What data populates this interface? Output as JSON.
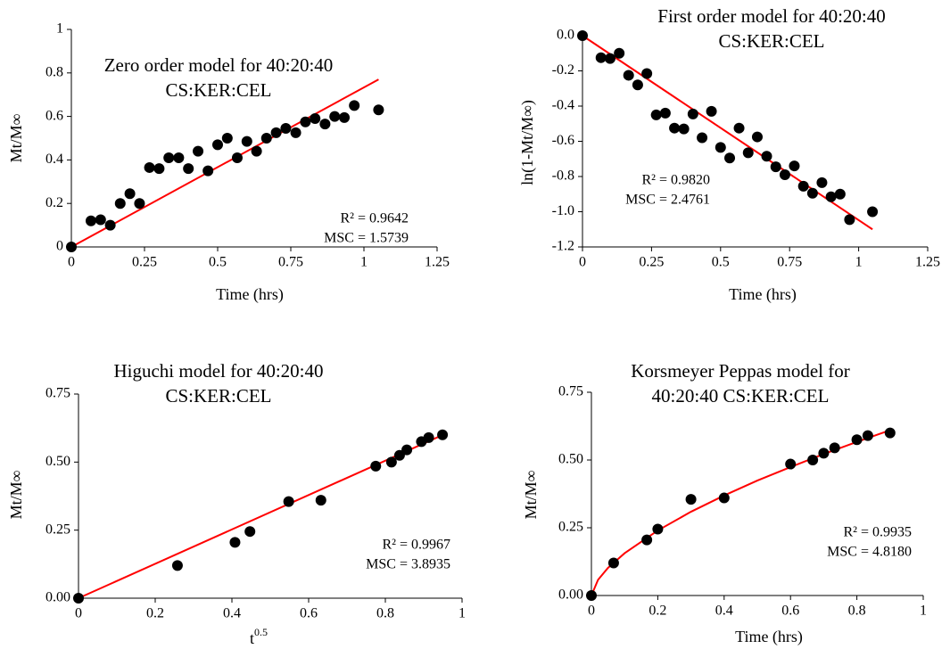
{
  "chart_data": [
    {
      "type": "scatter",
      "title_lines": [
        "Zero order model for 40:20:40",
        "CS:KER:CEL"
      ],
      "x_label": "Time (hrs)",
      "y_label": "Mt/M∞",
      "annotations": [
        "R² = 0.9642",
        "MSC = 1.5739"
      ],
      "xlim": [
        0,
        1.25
      ],
      "xticks": [
        0,
        0.25,
        0.5,
        0.75,
        1,
        1.25
      ],
      "ylim": [
        0,
        1
      ],
      "yticks": [
        0,
        0.2,
        0.4,
        0.6,
        0.8,
        1
      ],
      "x": [
        0,
        0.067,
        0.1,
        0.133,
        0.167,
        0.2,
        0.233,
        0.267,
        0.3,
        0.333,
        0.367,
        0.4,
        0.433,
        0.467,
        0.5,
        0.533,
        0.567,
        0.6,
        0.633,
        0.667,
        0.7,
        0.733,
        0.767,
        0.8,
        0.833,
        0.867,
        0.9,
        0.933,
        0.967,
        1.05
      ],
      "series": [
        {
          "color": "#000000",
          "values": [
            0,
            0.12,
            0.125,
            0.1,
            0.2,
            0.245,
            0.2,
            0.365,
            0.36,
            0.41,
            0.41,
            0.36,
            0.44,
            0.35,
            0.47,
            0.5,
            0.41,
            0.485,
            0.44,
            0.5,
            0.525,
            0.545,
            0.525,
            0.575,
            0.59,
            0.565,
            0.6,
            0.595,
            0.65,
            0.63
          ]
        }
      ],
      "fit": {
        "color": "#ff0000",
        "x": [
          0,
          1.05
        ],
        "values": [
          0,
          0.77
        ]
      }
    },
    {
      "type": "scatter",
      "title_lines": [
        "First order model for 40:20:40",
        "CS:KER:CEL"
      ],
      "x_label": "Time (hrs)",
      "y_label": "ln(1-Mt/M∞)",
      "annotations": [
        "R² = 0.9820",
        "MSC = 2.4761"
      ],
      "xlim": [
        0,
        1.25
      ],
      "xticks": [
        0,
        0.25,
        0.5,
        0.75,
        1,
        1.25
      ],
      "ylim": [
        -1.2,
        0
      ],
      "yticks": [
        {
          "value": 0,
          "label": "0.0"
        },
        -0.2,
        -0.4,
        -0.6,
        -0.8,
        {
          "value": -1,
          "label": "-1.0"
        },
        -1.2
      ],
      "x": [
        0,
        0.067,
        0.1,
        0.133,
        0.167,
        0.2,
        0.233,
        0.267,
        0.3,
        0.333,
        0.367,
        0.4,
        0.433,
        0.467,
        0.5,
        0.533,
        0.567,
        0.6,
        0.633,
        0.667,
        0.7,
        0.733,
        0.767,
        0.8,
        0.833,
        0.867,
        0.9,
        0.933,
        0.967,
        1.05
      ],
      "series": [
        {
          "color": "#000000",
          "values": [
            0,
            -0.125,
            -0.13,
            -0.1,
            -0.225,
            -0.28,
            -0.215,
            -0.45,
            -0.44,
            -0.525,
            -0.53,
            -0.445,
            -0.58,
            -0.43,
            -0.635,
            -0.695,
            -0.525,
            -0.665,
            -0.575,
            -0.685,
            -0.745,
            -0.79,
            -0.74,
            -0.855,
            -0.895,
            -0.835,
            -0.915,
            -0.9,
            -1.045,
            -1.0
          ]
        }
      ],
      "fit": {
        "color": "#ff0000",
        "x": [
          0,
          1.05
        ],
        "values": [
          0,
          -1.1
        ]
      }
    },
    {
      "type": "scatter",
      "title_lines": [
        "Higuchi model for 40:20:40",
        "CS:KER:CEL"
      ],
      "x_label": {
        "base": "t",
        "sup": "0.5"
      },
      "y_label": "Mt/M∞",
      "annotations": [
        "R² = 0.9967",
        "MSC = 3.8935"
      ],
      "xlim": [
        0,
        1
      ],
      "xticks": [
        0,
        0.2,
        0.4,
        0.6,
        0.8,
        1
      ],
      "ylim": [
        0,
        0.75
      ],
      "yticks": [
        {
          "value": 0,
          "label": "0.00"
        },
        0.25,
        {
          "value": 0.5,
          "label": "0.50"
        },
        0.75
      ],
      "x": [
        0,
        0.258,
        0.408,
        0.447,
        0.548,
        0.632,
        0.775,
        0.816,
        0.837,
        0.856,
        0.894,
        0.913,
        0.949
      ],
      "series": [
        {
          "color": "#000000",
          "values": [
            0,
            0.12,
            0.205,
            0.245,
            0.355,
            0.36,
            0.485,
            0.5,
            0.525,
            0.545,
            0.575,
            0.59,
            0.6
          ]
        }
      ],
      "fit": {
        "color": "#ff0000",
        "x": [
          0,
          0.95
        ],
        "values": [
          0,
          0.6
        ]
      }
    },
    {
      "type": "scatter",
      "title_lines": [
        "Korsmeyer Peppas model for",
        "40:20:40 CS:KER:CEL"
      ],
      "x_label": "Time (hrs)",
      "y_label": "Mt/M∞",
      "annotations": [
        "R² = 0.9935",
        "MSC = 4.8180"
      ],
      "xlim": [
        0,
        1
      ],
      "xticks": [
        0,
        0.2,
        0.4,
        0.6,
        0.8,
        1
      ],
      "ylim": [
        0,
        0.75
      ],
      "yticks": [
        {
          "value": 0,
          "label": "0.00"
        },
        0.25,
        {
          "value": 0.5,
          "label": "0.50"
        },
        0.75
      ],
      "x": [
        0,
        0.067,
        0.167,
        0.2,
        0.3,
        0.4,
        0.6,
        0.667,
        0.7,
        0.733,
        0.8,
        0.833,
        0.9
      ],
      "series": [
        {
          "color": "#000000",
          "values": [
            0,
            0.12,
            0.205,
            0.245,
            0.355,
            0.36,
            0.485,
            0.5,
            0.525,
            0.545,
            0.575,
            0.59,
            0.6
          ]
        }
      ],
      "fit": {
        "color": "#ff0000",
        "x": [
          0,
          0.02,
          0.05,
          0.1,
          0.2,
          0.3,
          0.4,
          0.5,
          0.6,
          0.7,
          0.8,
          0.9
        ],
        "values": [
          0,
          0.058,
          0.102,
          0.156,
          0.24,
          0.309,
          0.369,
          0.424,
          0.474,
          0.522,
          0.567,
          0.61
        ]
      }
    }
  ]
}
